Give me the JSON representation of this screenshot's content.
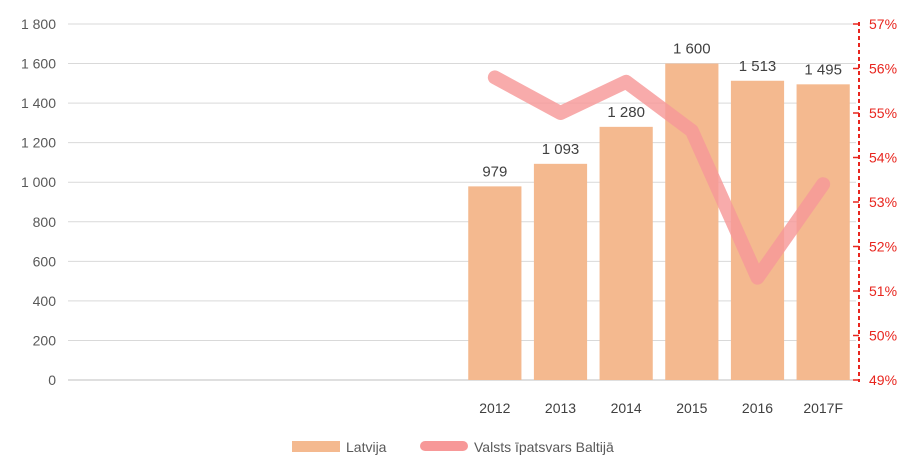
{
  "chart_data": {
    "type": "bar",
    "categories": [
      "2012",
      "2013",
      "2014",
      "2015",
      "2016",
      "2017F"
    ],
    "series": [
      {
        "name": "Latvija",
        "type": "bar",
        "axis": "left",
        "values": [
          979,
          1093,
          1280,
          1600,
          1513,
          1495
        ],
        "labels": [
          "979",
          "1 093",
          "1 280",
          "1 600",
          "1 513",
          "1 495"
        ],
        "color": "#f4b98f"
      },
      {
        "name": "Valsts īpatsvars Baltijā",
        "type": "line",
        "axis": "right",
        "values": [
          55.8,
          55.0,
          55.7,
          54.6,
          51.3,
          53.4
        ],
        "color": "#f79898"
      }
    ],
    "y_left": {
      "lim": [
        0,
        1800
      ],
      "ticks": [
        0,
        200,
        400,
        600,
        800,
        1000,
        1200,
        1400,
        1600,
        1800
      ],
      "tick_labels": [
        "0",
        "200",
        "400",
        "600",
        "800",
        "1 000",
        "1 200",
        "1 400",
        "1 600",
        "1 800"
      ]
    },
    "y_right": {
      "lim": [
        49,
        57
      ],
      "ticks": [
        49,
        50,
        51,
        52,
        53,
        54,
        55,
        56,
        57
      ],
      "tick_labels": [
        "49%",
        "50%",
        "51%",
        "52%",
        "53%",
        "54%",
        "55%",
        "56%",
        "57%"
      ],
      "color": "#e8251e"
    },
    "x_slots": 12,
    "grid": true,
    "legend": {
      "position": "bottom",
      "entries": [
        "Latvija",
        "Valsts īpatsvars Baltijā"
      ]
    }
  }
}
